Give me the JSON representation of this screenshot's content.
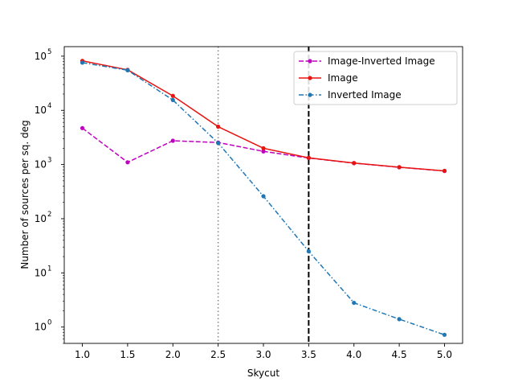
{
  "chart_data": {
    "type": "line",
    "xlabel": "Skycut",
    "ylabel": "Number of sources per sq. deg",
    "yscale": "log",
    "xlim": [
      0.8,
      5.2
    ],
    "ylim": [
      0.5,
      150000
    ],
    "x": [
      1.0,
      1.5,
      2.0,
      2.5,
      3.0,
      3.5,
      4.0,
      4.5,
      5.0
    ],
    "xtick_labels": [
      "1.0",
      "1.5",
      "2.0",
      "2.5",
      "3.0",
      "3.5",
      "4.0",
      "4.5",
      "5.0"
    ],
    "ytick_labels": [
      {
        "base": "10",
        "exp": "0",
        "value": 1
      },
      {
        "base": "10",
        "exp": "1",
        "value": 10
      },
      {
        "base": "10",
        "exp": "2",
        "value": 100
      },
      {
        "base": "10",
        "exp": "3",
        "value": 1000
      },
      {
        "base": "10",
        "exp": "4",
        "value": 10000
      },
      {
        "base": "10",
        "exp": "5",
        "value": 100000
      }
    ],
    "series": [
      {
        "name": "Image-Inverted Image",
        "color": "#c000c0",
        "dash": "dashed",
        "marker": "dot",
        "values": [
          4700,
          1100,
          2750,
          2550,
          1750,
          1320,
          1060,
          890,
          760
        ]
      },
      {
        "name": "Image",
        "color": "#e8140f",
        "dash": "solid",
        "marker": "dot",
        "values": [
          82000,
          56000,
          18500,
          5000,
          2000,
          1330,
          1065,
          895,
          765
        ]
      },
      {
        "name": "Inverted Image",
        "color": "#1f77b4",
        "dash": "dashdot",
        "marker": "dot",
        "values": [
          76000,
          55000,
          15500,
          2500,
          260,
          25,
          2.8,
          1.4,
          0.72
        ]
      }
    ],
    "vlines": [
      {
        "x": 2.5,
        "style": "dotted",
        "color": "#808080"
      },
      {
        "x": 3.5,
        "style": "dashed",
        "color": "#000000"
      }
    ],
    "legend_position": "upper-right",
    "grid": false
  }
}
